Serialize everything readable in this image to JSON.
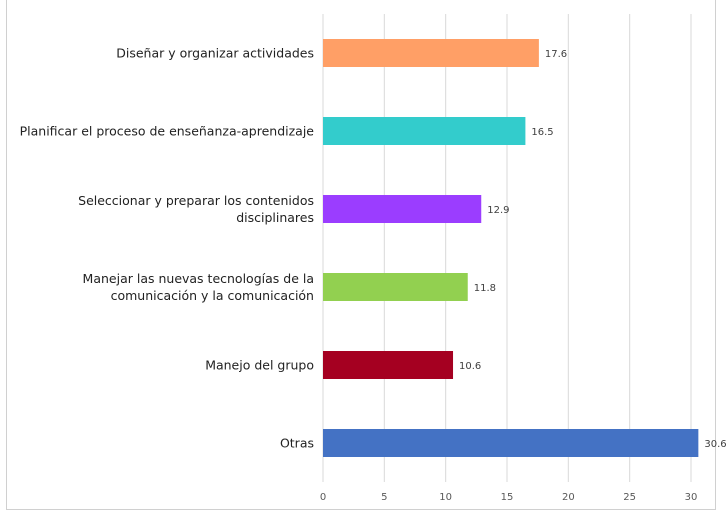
{
  "chart_data": {
    "type": "bar",
    "orientation": "horizontal",
    "title": "",
    "xlabel": "",
    "ylabel": "",
    "xlim": [
      0,
      30
    ],
    "x_ticks": [
      0,
      5,
      10,
      15,
      20,
      25,
      30
    ],
    "grid": true,
    "legend": "none",
    "categories": [
      "Diseñar y organizar actividades",
      "Planificar el proceso de enseñanza-aprendizaje",
      "Seleccionar y preparar los contenidos disciplinares",
      "Manejar las nuevas tecnologías de la comunicación y la comunicación",
      "Manejo del grupo",
      "Otras"
    ],
    "values": [
      17.6,
      16.5,
      12.9,
      11.8,
      10.6,
      30.6
    ],
    "data_labels": [
      "17.6",
      "16.5",
      "12.9",
      "11.8",
      "10.6",
      "30.6"
    ],
    "colors": [
      "#FF9F66",
      "#33CCCC",
      "#9B3DFF",
      "#92D050",
      "#A50021",
      "#4472C4"
    ]
  }
}
